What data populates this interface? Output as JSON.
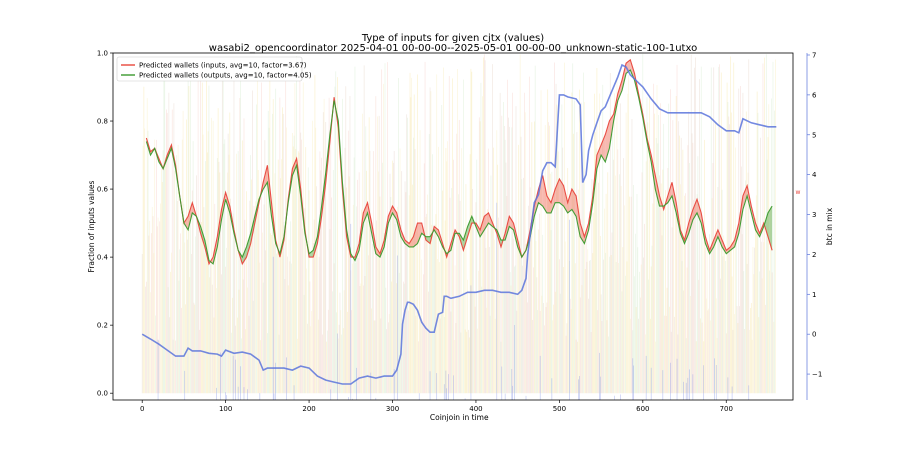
{
  "chart_data": {
    "type": "line",
    "title": "Type of inputs for given cjtx (values)",
    "subtitle": "wasabi2_opencoordinator 2025-04-01 00-00-00--2025-05-01 00-00-00_unknown-static-100-1utxo",
    "xlabel": "Coinjoin in time",
    "ylabel": "Fraction of inputs values",
    "y2label": "btc in mix",
    "xlim": [
      -35,
      780
    ],
    "ylim": [
      -0.02,
      1.0
    ],
    "y2lim": [
      -1.65,
      7.05
    ],
    "x_ticks": [
      0,
      100,
      200,
      300,
      400,
      500,
      600,
      700
    ],
    "y_ticks": [
      0.0,
      0.2,
      0.4,
      0.6,
      0.8,
      1.0
    ],
    "y2_ticks": [
      -1,
      0,
      1,
      2,
      3,
      4,
      5,
      6,
      7
    ],
    "right_edge_marker": "w",
    "grid": false,
    "legend": {
      "position": "top-left",
      "entries": [
        {
          "label": "Predicted wallets (inputs, avg=10, factor=3.67)",
          "color": "#e8463c"
        },
        {
          "label": "Predicted wallets (outputs, avg=10, factor=4.05)",
          "color": "#3a9a2e"
        }
      ]
    },
    "series": [
      {
        "name": "Predicted wallets (inputs, avg=10, factor=3.67)",
        "color": "#e8463c",
        "x": [
          5,
          10,
          15,
          20,
          25,
          30,
          35,
          40,
          45,
          50,
          55,
          60,
          65,
          70,
          75,
          80,
          85,
          90,
          95,
          100,
          105,
          110,
          115,
          120,
          125,
          130,
          135,
          140,
          145,
          150,
          155,
          160,
          165,
          170,
          175,
          180,
          185,
          190,
          195,
          200,
          205,
          210,
          215,
          220,
          225,
          230,
          235,
          240,
          245,
          250,
          255,
          260,
          265,
          270,
          275,
          280,
          285,
          290,
          295,
          300,
          305,
          310,
          315,
          320,
          325,
          330,
          335,
          340,
          345,
          350,
          355,
          360,
          365,
          370,
          375,
          380,
          385,
          390,
          395,
          400,
          405,
          410,
          415,
          420,
          425,
          430,
          435,
          440,
          445,
          450,
          455,
          460,
          465,
          470,
          475,
          480,
          485,
          490,
          495,
          500,
          505,
          510,
          515,
          520,
          525,
          530,
          535,
          540,
          545,
          550,
          555,
          560,
          565,
          570,
          575,
          580,
          585,
          590,
          595,
          600,
          605,
          610,
          615,
          620,
          625,
          630,
          635,
          640,
          645,
          650,
          655,
          660,
          665,
          670,
          675,
          680,
          685,
          690,
          695,
          700,
          705,
          710,
          715,
          720,
          725,
          730,
          735,
          740,
          745,
          750,
          755
        ],
        "values": [
          0.75,
          0.71,
          0.72,
          0.69,
          0.66,
          0.7,
          0.73,
          0.67,
          0.58,
          0.5,
          0.52,
          0.56,
          0.52,
          0.47,
          0.43,
          0.38,
          0.4,
          0.46,
          0.54,
          0.59,
          0.55,
          0.48,
          0.42,
          0.38,
          0.4,
          0.44,
          0.5,
          0.56,
          0.62,
          0.67,
          0.56,
          0.45,
          0.4,
          0.45,
          0.57,
          0.66,
          0.69,
          0.6,
          0.48,
          0.4,
          0.4,
          0.44,
          0.52,
          0.62,
          0.74,
          0.87,
          0.78,
          0.6,
          0.46,
          0.4,
          0.4,
          0.44,
          0.53,
          0.56,
          0.5,
          0.43,
          0.41,
          0.45,
          0.52,
          0.55,
          0.53,
          0.48,
          0.45,
          0.44,
          0.46,
          0.5,
          0.5,
          0.45,
          0.44,
          0.49,
          0.48,
          0.44,
          0.4,
          0.44,
          0.48,
          0.46,
          0.42,
          0.46,
          0.5,
          0.5,
          0.48,
          0.52,
          0.53,
          0.5,
          0.47,
          0.43,
          0.47,
          0.52,
          0.5,
          0.45,
          0.4,
          0.42,
          0.48,
          0.55,
          0.6,
          0.64,
          0.58,
          0.56,
          0.6,
          0.63,
          0.61,
          0.56,
          0.6,
          0.58,
          0.5,
          0.46,
          0.5,
          0.58,
          0.7,
          0.73,
          0.76,
          0.8,
          0.82,
          0.88,
          0.92,
          0.97,
          0.98,
          0.94,
          0.88,
          0.82,
          0.75,
          0.7,
          0.64,
          0.58,
          0.54,
          0.58,
          0.62,
          0.56,
          0.48,
          0.45,
          0.5,
          0.54,
          0.57,
          0.53,
          0.46,
          0.42,
          0.45,
          0.48,
          0.45,
          0.42,
          0.43,
          0.45,
          0.5,
          0.58,
          0.61,
          0.55,
          0.5,
          0.47,
          0.5,
          0.46,
          0.42
        ]
      },
      {
        "name": "Predicted wallets (outputs, avg=10, factor=4.05)",
        "color": "#3a9a2e",
        "x": [
          5,
          10,
          15,
          20,
          25,
          30,
          35,
          40,
          45,
          50,
          55,
          60,
          65,
          70,
          75,
          80,
          85,
          90,
          95,
          100,
          105,
          110,
          115,
          120,
          125,
          130,
          135,
          140,
          145,
          150,
          155,
          160,
          165,
          170,
          175,
          180,
          185,
          190,
          195,
          200,
          205,
          210,
          215,
          220,
          225,
          230,
          235,
          240,
          245,
          250,
          255,
          260,
          265,
          270,
          275,
          280,
          285,
          290,
          295,
          300,
          305,
          310,
          315,
          320,
          325,
          330,
          335,
          340,
          345,
          350,
          355,
          360,
          365,
          370,
          375,
          380,
          385,
          390,
          395,
          400,
          405,
          410,
          415,
          420,
          425,
          430,
          435,
          440,
          445,
          450,
          455,
          460,
          465,
          470,
          475,
          480,
          485,
          490,
          495,
          500,
          505,
          510,
          515,
          520,
          525,
          530,
          535,
          540,
          545,
          550,
          555,
          560,
          565,
          570,
          575,
          580,
          585,
          590,
          595,
          600,
          605,
          610,
          615,
          620,
          625,
          630,
          635,
          640,
          645,
          650,
          655,
          660,
          665,
          670,
          675,
          680,
          685,
          690,
          695,
          700,
          705,
          710,
          715,
          720,
          725,
          730,
          735,
          740,
          745,
          750,
          755
        ],
        "values": [
          0.74,
          0.7,
          0.72,
          0.68,
          0.66,
          0.69,
          0.72,
          0.66,
          0.58,
          0.5,
          0.48,
          0.53,
          0.52,
          0.49,
          0.45,
          0.39,
          0.38,
          0.43,
          0.51,
          0.57,
          0.53,
          0.47,
          0.42,
          0.4,
          0.43,
          0.47,
          0.52,
          0.57,
          0.6,
          0.62,
          0.52,
          0.44,
          0.41,
          0.46,
          0.56,
          0.64,
          0.67,
          0.58,
          0.47,
          0.41,
          0.42,
          0.46,
          0.55,
          0.65,
          0.76,
          0.86,
          0.8,
          0.62,
          0.48,
          0.41,
          0.39,
          0.42,
          0.5,
          0.53,
          0.47,
          0.41,
          0.4,
          0.43,
          0.5,
          0.53,
          0.51,
          0.46,
          0.44,
          0.43,
          0.43,
          0.44,
          0.47,
          0.46,
          0.46,
          0.48,
          0.46,
          0.43,
          0.41,
          0.42,
          0.47,
          0.47,
          0.45,
          0.49,
          0.52,
          0.49,
          0.46,
          0.48,
          0.5,
          0.49,
          0.48,
          0.45,
          0.45,
          0.49,
          0.48,
          0.43,
          0.4,
          0.42,
          0.46,
          0.52,
          0.56,
          0.55,
          0.53,
          0.53,
          0.56,
          0.56,
          0.55,
          0.53,
          0.54,
          0.52,
          0.46,
          0.44,
          0.48,
          0.56,
          0.66,
          0.7,
          0.68,
          0.72,
          0.8,
          0.86,
          0.89,
          0.94,
          0.95,
          0.92,
          0.87,
          0.81,
          0.74,
          0.68,
          0.6,
          0.55,
          0.55,
          0.56,
          0.58,
          0.53,
          0.47,
          0.44,
          0.47,
          0.51,
          0.53,
          0.5,
          0.44,
          0.41,
          0.43,
          0.46,
          0.43,
          0.41,
          0.42,
          0.43,
          0.47,
          0.54,
          0.58,
          0.53,
          0.48,
          0.46,
          0.49,
          0.53,
          0.55
        ]
      },
      {
        "name": "btc in mix",
        "color": "#5a74dc",
        "axis": "right",
        "x": [
          0,
          10,
          20,
          30,
          40,
          50,
          55,
          60,
          70,
          80,
          90,
          95,
          100,
          110,
          120,
          130,
          140,
          145,
          150,
          160,
          170,
          180,
          190,
          200,
          210,
          220,
          230,
          240,
          250,
          260,
          270,
          280,
          290,
          300,
          305,
          310,
          312,
          315,
          318,
          320,
          325,
          330,
          335,
          340,
          345,
          350,
          355,
          360,
          362,
          365,
          370,
          380,
          390,
          400,
          410,
          420,
          430,
          440,
          450,
          455,
          460,
          462,
          465,
          470,
          475,
          480,
          485,
          490,
          495,
          500,
          505,
          510,
          520,
          525,
          528,
          530,
          532,
          535,
          540,
          545,
          550,
          555,
          560,
          565,
          570,
          575,
          580,
          585,
          590,
          595,
          600,
          610,
          620,
          630,
          640,
          650,
          660,
          670,
          680,
          690,
          700,
          710,
          715,
          720,
          730,
          740,
          750,
          760
        ],
        "values": [
          0.0,
          -0.12,
          -0.25,
          -0.4,
          -0.55,
          -0.55,
          -0.35,
          -0.42,
          -0.42,
          -0.48,
          -0.5,
          -0.55,
          -0.4,
          -0.48,
          -0.45,
          -0.5,
          -0.65,
          -0.9,
          -0.85,
          -0.85,
          -0.85,
          -0.9,
          -0.8,
          -0.85,
          -1.05,
          -1.15,
          -1.2,
          -1.25,
          -1.25,
          -1.1,
          -1.05,
          -1.1,
          -1.05,
          -1.05,
          -0.9,
          -0.5,
          0.25,
          0.6,
          0.8,
          0.8,
          0.75,
          0.6,
          0.3,
          0.15,
          0.05,
          0.05,
          0.5,
          0.55,
          0.95,
          0.95,
          0.9,
          0.95,
          1.05,
          1.05,
          1.1,
          1.1,
          1.05,
          1.05,
          1.0,
          1.1,
          1.4,
          2.0,
          2.5,
          3.3,
          3.5,
          4.1,
          4.3,
          4.3,
          4.2,
          6.0,
          6.0,
          5.95,
          5.9,
          5.75,
          3.8,
          3.9,
          4.0,
          4.6,
          5.0,
          5.3,
          5.6,
          5.7,
          5.95,
          6.2,
          6.45,
          6.75,
          6.7,
          6.5,
          6.4,
          6.3,
          6.2,
          5.9,
          5.65,
          5.55,
          5.55,
          5.55,
          5.55,
          5.55,
          5.45,
          5.25,
          5.1,
          5.1,
          5.05,
          5.4,
          5.3,
          5.25,
          5.2,
          5.2
        ]
      }
    ]
  }
}
